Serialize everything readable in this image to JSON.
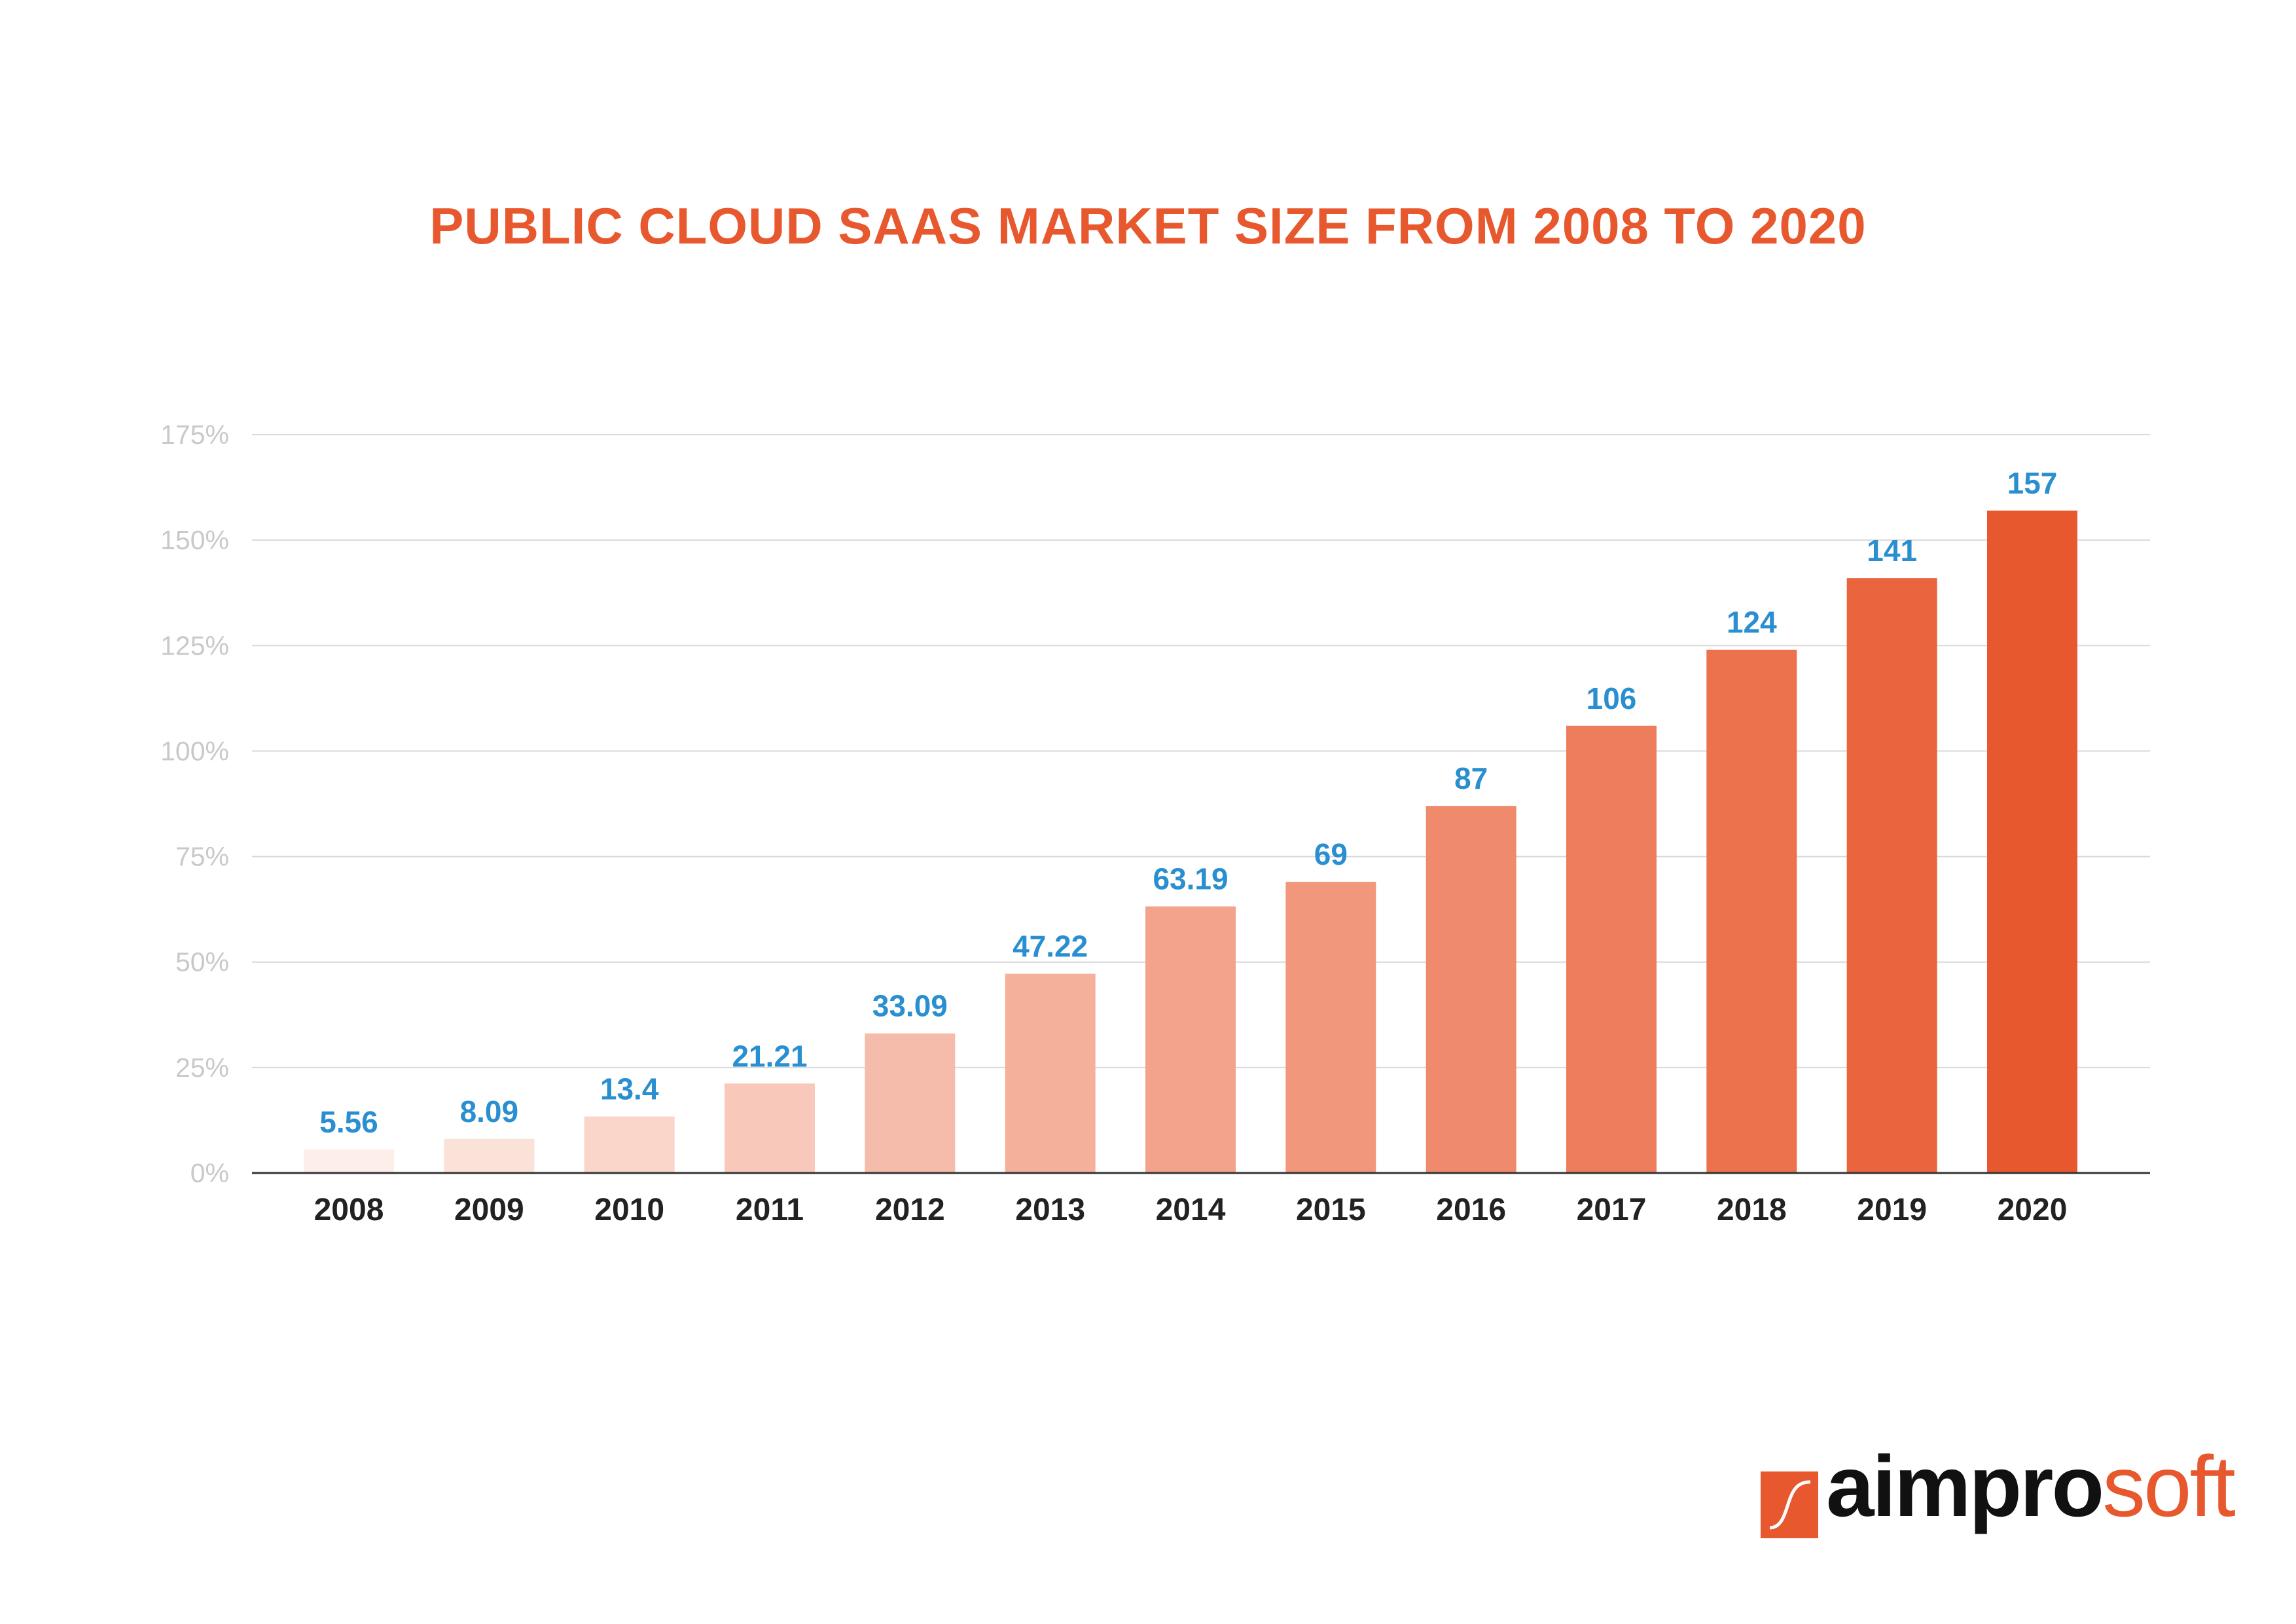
{
  "chart_data": {
    "type": "bar",
    "title": "PUBLIC CLOUD SAAS MARKET SIZE FROM 2008 TO 2020",
    "categories": [
      "2008",
      "2009",
      "2010",
      "2011",
      "2012",
      "2013",
      "2014",
      "2015",
      "2016",
      "2017",
      "2018",
      "2019",
      "2020"
    ],
    "values": [
      5.56,
      8.09,
      13.4,
      21.21,
      33.09,
      47.22,
      63.19,
      69,
      87,
      106,
      124,
      141,
      157
    ],
    "value_labels": [
      "5.56",
      "8.09",
      "13.4",
      "21.21",
      "33.09",
      "47.22",
      "63.19",
      "69",
      "87",
      "106",
      "124",
      "141",
      "157"
    ],
    "y_ticks": [
      "0%",
      "25%",
      "50%",
      "75%",
      "100%",
      "125%",
      "150%",
      "175%"
    ],
    "ylim": [
      0,
      175
    ],
    "xlabel": "",
    "ylabel": "",
    "grid": true,
    "colors": {
      "title": "#e8582e",
      "data_label": "#2a8fd0",
      "bar_start": "#fdeee9",
      "bar_end": "#e8582e",
      "grid": "#d9d9d9",
      "axis": "#333333"
    }
  },
  "logo": {
    "text_main": "aimpro",
    "text_accent": "soft",
    "icon": "aimprosoft-logo-icon"
  }
}
